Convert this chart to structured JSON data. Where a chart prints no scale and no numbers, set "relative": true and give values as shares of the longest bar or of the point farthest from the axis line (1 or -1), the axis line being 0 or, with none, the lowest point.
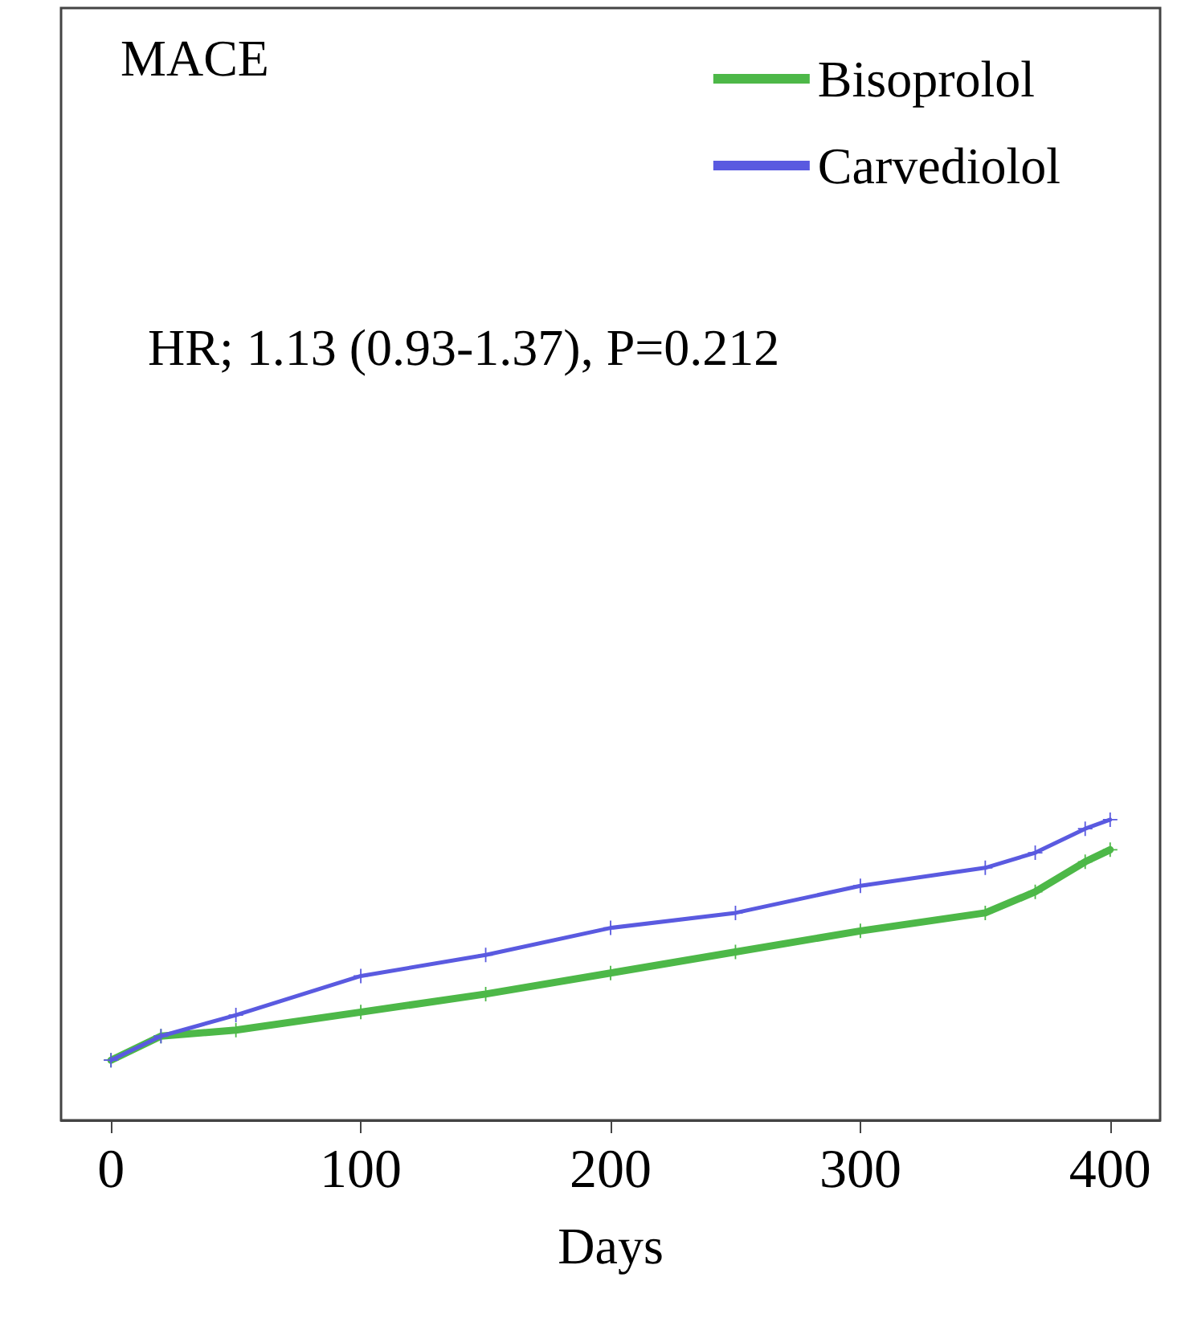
{
  "chart_data": {
    "type": "line",
    "title": "MACE",
    "xlabel": "Days",
    "annotations": [
      "HR; 1.13 (0.93-1.37), P=0.212"
    ],
    "relative": true,
    "xlim": [
      -20,
      420
    ],
    "xticks": [
      0,
      100,
      200,
      300,
      400
    ],
    "grid": false,
    "legend": "top right",
    "marker": "cross",
    "line_style": "solid",
    "series": [
      {
        "name": "Bisoprolol",
        "color": "#4db848",
        "x": [
          0,
          20,
          50,
          100,
          150,
          200,
          250,
          300,
          350,
          370,
          390,
          400
        ],
        "values": [
          0.2,
          0.28,
          0.3,
          0.36,
          0.42,
          0.49,
          0.56,
          0.63,
          0.69,
          0.76,
          0.86,
          0.9
        ]
      },
      {
        "name": "Carvediolol",
        "color": "#5a5ae0",
        "x": [
          0,
          20,
          50,
          100,
          150,
          200,
          250,
          300,
          350,
          370,
          390,
          400
        ],
        "values": [
          0.2,
          0.28,
          0.35,
          0.48,
          0.55,
          0.64,
          0.69,
          0.78,
          0.84,
          0.89,
          0.97,
          1
        ]
      }
    ]
  }
}
